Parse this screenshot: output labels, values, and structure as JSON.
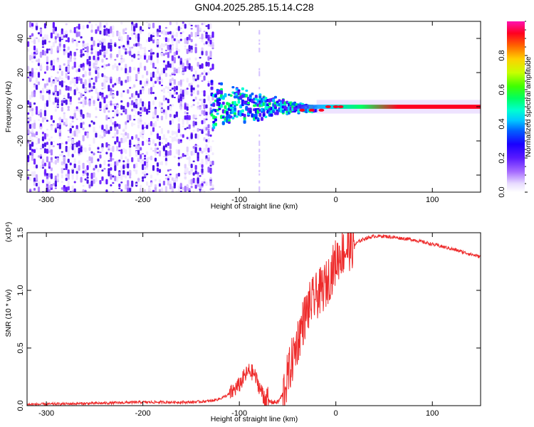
{
  "title": "GN04.2025.285.15.14.C28",
  "colorbar": {
    "label": "Normalized spectral amplitude",
    "ticks": [
      0.0,
      0.2,
      0.4,
      0.6,
      0.8
    ],
    "tick_labels": [
      "0.0",
      "0.2",
      "0.4",
      "0.6",
      "0.8"
    ],
    "colormap": [
      "#ffffff",
      "#d6c4ff",
      "#8a2be2",
      "#3b00ff",
      "#0000ff",
      "#00bfff",
      "#00ffff",
      "#00ff80",
      "#00ff00",
      "#ffff00",
      "#ff8000",
      "#ff0000",
      "#ff00ff"
    ]
  },
  "chart_data": [
    {
      "type": "heatmap",
      "title": "",
      "xlabel": "Height of straight line (km)",
      "ylabel": "Frequency (Hz)",
      "xlim": [
        -320,
        150
      ],
      "ylim": [
        -50,
        50
      ],
      "x_ticks": [
        -300,
        -200,
        -100,
        0,
        100
      ],
      "x_tick_labels": [
        "-300",
        "-200",
        "-100",
        "0",
        "100"
      ],
      "y_ticks": [
        -40,
        -20,
        0,
        20,
        40
      ],
      "y_tick_labels": [
        "-40",
        "-20",
        "0",
        "20",
        "40"
      ],
      "features": [
        {
          "region": "scattered noise",
          "x_range": [
            -320,
            -130
          ],
          "y_range": [
            -50,
            50
          ],
          "amplitude": 0.15
        },
        {
          "region": "narrow band",
          "x_range": [
            -130,
            150
          ],
          "center_y": 0,
          "amplitude_peak": 1.0
        }
      ]
    },
    {
      "type": "line",
      "title": "",
      "xlabel": "Height of straight line (km)",
      "ylabel": "SNR (10 * v/v)",
      "y_multiplier": "(x10⁴)",
      "xlim": [
        -320,
        150
      ],
      "ylim": [
        0,
        1.5
      ],
      "x_ticks": [
        -300,
        -200,
        -100,
        0,
        100
      ],
      "x_tick_labels": [
        "-300",
        "-200",
        "-100",
        "0",
        "100"
      ],
      "y_ticks": [
        0.0,
        0.5,
        1.0,
        1.5
      ],
      "y_tick_labels": [
        "0.0",
        "0.5",
        "1.0",
        "1.5"
      ],
      "series": [
        {
          "color": "#ee2b2b",
          "x": [
            -320,
            -250,
            -200,
            -150,
            -130,
            -120,
            -110,
            -100,
            -95,
            -90,
            -85,
            -80,
            -75,
            -70,
            -65,
            -60,
            -55,
            -50,
            -45,
            -40,
            -35,
            -30,
            -25,
            -20,
            -15,
            -10,
            -5,
            0,
            5,
            10,
            15,
            20,
            25,
            30,
            35,
            40,
            50,
            60,
            80,
            100,
            120,
            150
          ],
          "y": [
            0.01,
            0.02,
            0.03,
            0.03,
            0.04,
            0.06,
            0.1,
            0.18,
            0.25,
            0.3,
            0.28,
            0.18,
            0.08,
            0.04,
            0.03,
            0.03,
            0.1,
            0.25,
            0.4,
            0.55,
            0.7,
            0.82,
            0.9,
            0.95,
            1.0,
            1.05,
            1.15,
            1.25,
            1.32,
            1.35,
            1.38,
            1.4,
            1.43,
            1.45,
            1.46,
            1.47,
            1.47,
            1.46,
            1.44,
            1.4,
            1.36,
            1.29
          ]
        }
      ]
    }
  ]
}
